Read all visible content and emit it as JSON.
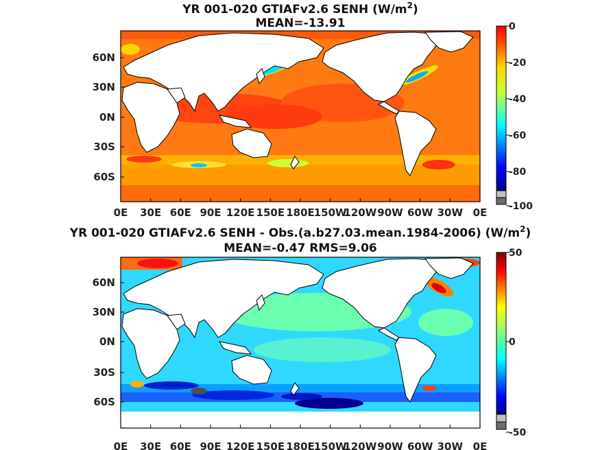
{
  "panels": [
    {
      "title_main": "YR 001-020 GTIAFv2.6  SENH (W/m",
      "title_sup": "2",
      "title_close": ")",
      "subtitle": "MEAN=-13.91",
      "lon_ticks": [
        "0E",
        "30E",
        "60E",
        "90E",
        "120E",
        "150E",
        "180E",
        "150W",
        "120W",
        "90W",
        "60W",
        "30W",
        "0E"
      ],
      "lat_ticks": [
        "60N",
        "30N",
        "0N",
        "30S",
        "60S"
      ],
      "colorbar": {
        "min": -100,
        "max": 0,
        "ticks": [
          "0",
          "-20",
          "-40",
          "-60",
          "-80",
          "-100"
        ],
        "under_color": "#6b6b6b"
      }
    },
    {
      "title_main": "YR 001-020 GTIAFv2.6 SENH - Obs.(a.b27.03.mean.1984-2006) (W/m",
      "title_sup": "2",
      "title_close": ")",
      "subtitle": "MEAN=-0.47 RMS=9.06",
      "lon_ticks": [
        "0E",
        "30E",
        "60E",
        "90E",
        "120E",
        "150E",
        "180E",
        "150W",
        "120W",
        "90W",
        "60W",
        "30W",
        "0E"
      ],
      "lat_ticks": [
        "60N",
        "30N",
        "0N",
        "30S",
        "60S"
      ],
      "colorbar": {
        "min": -50,
        "max": 50,
        "ticks": [
          "50",
          "0",
          "-50"
        ],
        "under_color": "#6b6b6b"
      }
    }
  ],
  "colors": {
    "land": "#ffffff",
    "frame": "#000000"
  }
}
